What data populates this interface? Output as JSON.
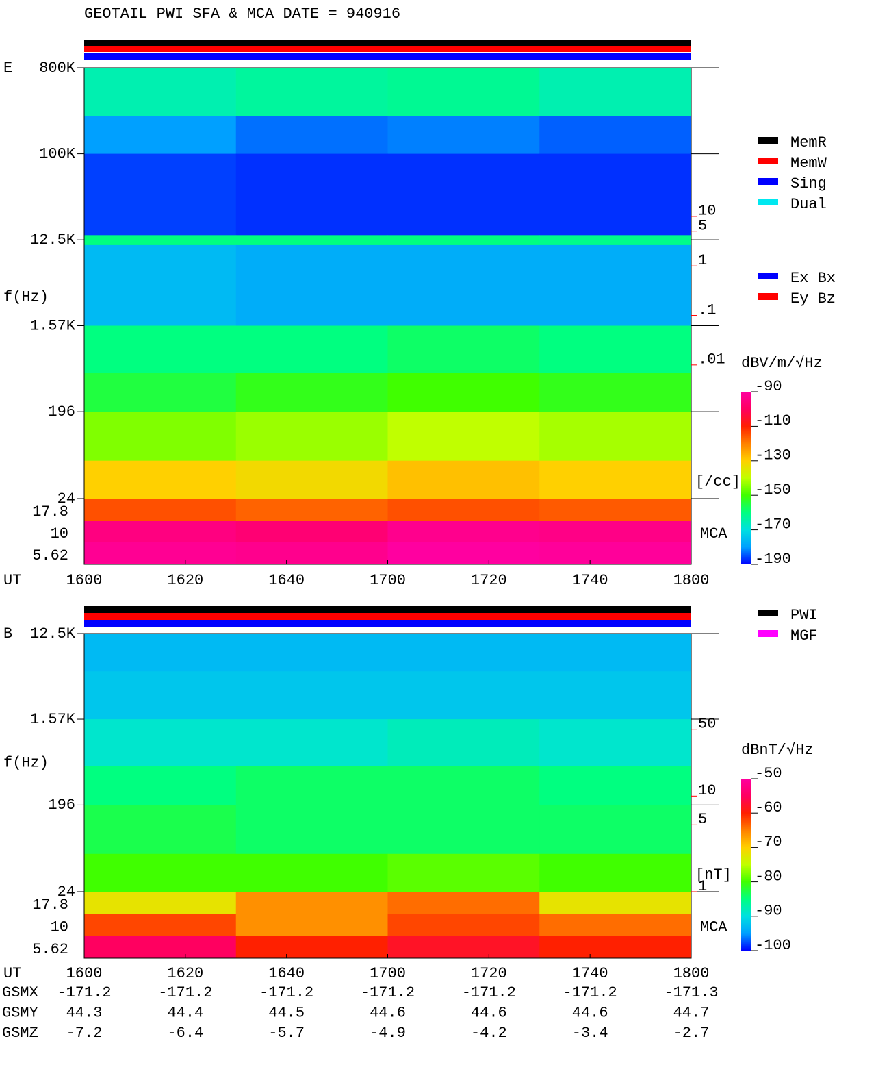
{
  "header": {
    "title": "GEOTAIL  PWI SFA & MCA   DATE = 940916"
  },
  "chart_data": [
    {
      "type": "spectrogram",
      "panel": "E",
      "ylabel": "f(Hz)",
      "xlabel": "UT",
      "xticks": [
        "1600",
        "1620",
        "1640",
        "1700",
        "1720",
        "1740",
        "1800"
      ],
      "yscale": "log",
      "ylim": [
        24,
        800000
      ],
      "yticks": [
        {
          "value": 800000,
          "label": "800K"
        },
        {
          "value": 100000,
          "label": "100K"
        },
        {
          "value": 12500,
          "label": "12.5K"
        },
        {
          "value": 1570,
          "label": "1.57K"
        },
        196,
        24
      ],
      "bin_edges": [
        800000,
        250000,
        100000,
        14000,
        11000,
        1570,
        500,
        196,
        60,
        24
      ],
      "levels": [
        [
          -165,
          -163,
          -162,
          -165
        ],
        [
          -180,
          -183,
          -182,
          -184
        ],
        [
          -186,
          -187,
          -187,
          -187
        ],
        [
          -160,
          -160,
          -160,
          -161
        ],
        [
          -176,
          -178,
          -178,
          -178
        ],
        [
          -160,
          -160,
          -158,
          -160
        ],
        [
          -155,
          -152,
          -150,
          -152
        ],
        [
          -145,
          -143,
          -140,
          -142
        ],
        [
          -130,
          -132,
          -128,
          -130
        ]
      ],
      "mca_label": "MCA",
      "mca_bands": [
        17.8,
        10,
        5.62
      ],
      "mca_levels": [
        [
          -115,
          -117,
          -115,
          -116
        ],
        [
          -95,
          -97,
          -93,
          -94
        ],
        [
          -92,
          -93,
          -90,
          -91
        ]
      ],
      "colorbar": {
        "label": "dBV/m/√Hz",
        "clim": [
          -190,
          -90
        ],
        "ticks": [
          -90,
          -110,
          -130,
          -150,
          -170,
          -190
        ],
        "colors": [
          "#0000ff",
          "#00a0ff",
          "#00e0e0",
          "#00ff80",
          "#40ff00",
          "#c0ff00",
          "#ffd000",
          "#ff8000",
          "#ff2000",
          "#ff0060",
          "#ff00a0"
        ]
      },
      "right_axis": {
        "color": "#ff0000",
        "scale": "log",
        "lim": [
          2e-05,
          10000
        ],
        "unit": "[/cc]",
        "ticks": [
          10,
          5,
          1,
          {
            "value": 0.1,
            "label": ".1"
          },
          {
            "value": 0.01,
            "label": ".01"
          }
        ]
      },
      "legends": [
        [
          {
            "name": "MemR",
            "color": "#000000"
          },
          {
            "name": "MemW",
            "color": "#ff0000"
          },
          {
            "name": "Sing",
            "color": "#0000ff"
          },
          {
            "name": "Dual",
            "color": "#00e8f0"
          }
        ],
        [
          {
            "name": "Ex Bx",
            "color": "#0000ff"
          },
          {
            "name": "Ey Bz",
            "color": "#ff0000"
          }
        ]
      ]
    },
    {
      "type": "spectrogram",
      "panel": "B",
      "ylabel": "f(Hz)",
      "xlabel": "UT",
      "xticks": [
        "1600",
        "1620",
        "1640",
        "1700",
        "1720",
        "1740",
        "1800"
      ],
      "yscale": "log",
      "ylim": [
        24,
        12500
      ],
      "yticks": [
        {
          "value": 12500,
          "label": "12.5K"
        },
        {
          "value": 1570,
          "label": "1.57K"
        },
        196,
        24
      ],
      "bin_edges": [
        12500,
        5000,
        1570,
        500,
        196,
        60,
        24
      ],
      "levels": [
        [
          -93,
          -93,
          -93,
          -93
        ],
        [
          -92,
          -92,
          -92,
          -92
        ],
        [
          -89,
          -89,
          -88,
          -89
        ],
        [
          -85,
          -84,
          -84,
          -85
        ],
        [
          -83,
          -84,
          -84,
          -84
        ],
        [
          -80,
          -80,
          -79,
          -80
        ]
      ],
      "mca_label": "MCA",
      "mca_bands": [
        17.8,
        10,
        5.62
      ],
      "mca_levels": [
        [
          -72,
          -66,
          -64,
          -72
        ],
        [
          -62,
          -66,
          -62,
          -64
        ],
        [
          -55,
          -60,
          -58,
          -60
        ]
      ],
      "colorbar": {
        "label": "dBnT/√Hz",
        "clim": [
          -100,
          -50
        ],
        "ticks": [
          -50,
          -60,
          -70,
          -80,
          -90,
          -100
        ],
        "colors": [
          "#0000ff",
          "#00a0ff",
          "#00e0e0",
          "#00ff80",
          "#40ff00",
          "#c0ff00",
          "#ffd000",
          "#ff8000",
          "#ff2000",
          "#ff0060",
          "#ff00a0"
        ]
      },
      "right_axis": {
        "color": "#ff0000",
        "scale": "log",
        "lim": [
          1,
          500
        ],
        "unit": "[nT]",
        "ticks": [
          50,
          10,
          5,
          1
        ]
      },
      "legends": [
        [
          {
            "name": "PWI",
            "color": "#000000"
          },
          {
            "name": "MGF",
            "color": "#ff00ff"
          }
        ]
      ]
    }
  ],
  "ephemeris": {
    "labels": [
      "GSMX",
      "GSMY",
      "GSMZ"
    ],
    "rows": [
      [
        -171.2,
        -171.2,
        -171.2,
        -171.2,
        -171.2,
        -171.2,
        -171.3
      ],
      [
        44.3,
        44.4,
        44.5,
        44.6,
        44.6,
        44.6,
        44.7
      ],
      [
        -7.2,
        -6.4,
        -5.7,
        -4.9,
        -4.2,
        -3.4,
        -2.7
      ]
    ]
  }
}
